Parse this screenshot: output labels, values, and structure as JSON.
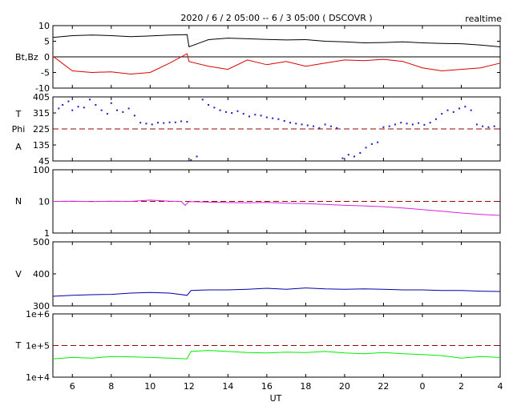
{
  "header": {
    "title": "2020 / 6 / 2  05:00 -- 6 / 3  05:00 ( DSCOVR )",
    "mode": "realtime"
  },
  "colors": {
    "bt": "#000000",
    "bz": "#dd0000",
    "phi": "#1a1acc",
    "ref_line": "#990000",
    "density": "#dd22dd",
    "speed": "#0000aa",
    "temperature": "#00ee00"
  },
  "chart_data": [
    {
      "type": "line",
      "panel": "magnetic-field",
      "ylabel": "Bt,Bz",
      "x_range": [
        5,
        28
      ],
      "ylim": [
        -10,
        10
      ],
      "yticks": [
        "10",
        "5",
        "0",
        "-5",
        "-10"
      ],
      "reference_line": 0,
      "x": [
        5.0,
        6.0,
        7.0,
        8.0,
        9.0,
        10.0,
        11.0,
        11.9,
        12.0,
        13.0,
        14.0,
        15.0,
        16.0,
        17.0,
        18.0,
        19.0,
        20.0,
        21.0,
        22.0,
        23.0,
        24.0,
        25.0,
        26.0,
        27.0,
        28.0
      ],
      "series": [
        {
          "name": "Bt",
          "values": [
            6.2,
            6.8,
            7.0,
            6.8,
            6.5,
            6.7,
            7.0,
            7.1,
            3.2,
            5.5,
            6.0,
            5.8,
            5.6,
            5.4,
            5.5,
            5.0,
            4.8,
            4.5,
            4.6,
            4.8,
            4.5,
            4.3,
            4.2,
            3.8,
            3.2
          ]
        },
        {
          "name": "Bz",
          "values": [
            0.2,
            -4.5,
            -5.0,
            -4.8,
            -5.5,
            -5.0,
            -2.0,
            1.0,
            -1.5,
            -3.0,
            -4.0,
            -1.0,
            -2.5,
            -1.5,
            -3.0,
            -2.0,
            -1.0,
            -1.2,
            -0.8,
            -1.5,
            -3.5,
            -4.5,
            -4.0,
            -3.5,
            -2.0
          ]
        }
      ]
    },
    {
      "type": "scatter",
      "panel": "phi-angle",
      "ylabel": [
        "T",
        "Phi",
        "A"
      ],
      "x_range": [
        5,
        28
      ],
      "ylim": [
        45,
        405
      ],
      "yticks": [
        "405",
        "315",
        "225",
        "135",
        "45"
      ],
      "reference_line": 225,
      "x": [
        5.3,
        5.5,
        5.8,
        6.0,
        6.3,
        6.6,
        6.9,
        7.2,
        7.5,
        7.8,
        8.0,
        8.3,
        8.6,
        8.9,
        9.2,
        9.5,
        9.8,
        10.1,
        10.4,
        10.7,
        11.0,
        11.3,
        11.6,
        11.9,
        12.1,
        12.4,
        12.7,
        13.0,
        13.3,
        13.6,
        13.9,
        14.2,
        14.5,
        14.8,
        15.1,
        15.4,
        15.7,
        16.0,
        16.3,
        16.6,
        16.9,
        17.2,
        17.5,
        17.8,
        18.1,
        18.4,
        18.7,
        19.0,
        19.3,
        19.6,
        19.9,
        20.2,
        20.5,
        20.8,
        21.1,
        21.4,
        21.7,
        22.0,
        22.3,
        22.6,
        22.9,
        23.2,
        23.5,
        23.8,
        24.1,
        24.4,
        24.7,
        25.0,
        25.3,
        25.6,
        25.9,
        26.2,
        26.5,
        26.8,
        27.1,
        27.4,
        27.7
      ],
      "values": [
        340,
        360,
        380,
        330,
        350,
        345,
        390,
        360,
        330,
        310,
        370,
        330,
        320,
        340,
        300,
        260,
        255,
        250,
        260,
        258,
        262,
        262,
        268,
        265,
        50,
        70,
        390,
        360,
        345,
        330,
        320,
        315,
        325,
        310,
        295,
        305,
        300,
        290,
        285,
        280,
        270,
        260,
        255,
        250,
        245,
        240,
        230,
        250,
        240,
        230,
        60,
        80,
        70,
        90,
        120,
        140,
        150,
        235,
        240,
        250,
        260,
        255,
        250,
        258,
        248,
        260,
        280,
        310,
        330,
        320,
        340,
        350,
        330,
        250,
        240,
        235,
        240
      ]
    },
    {
      "type": "line",
      "panel": "density",
      "ylabel": "N",
      "x_range": [
        5,
        28
      ],
      "yscale": "log",
      "ylim": [
        1,
        100
      ],
      "yticks": [
        "100",
        "10",
        "1"
      ],
      "reference_line": 10,
      "x": [
        5.0,
        6.0,
        7.0,
        8.0,
        9.0,
        10.0,
        11.0,
        11.6,
        11.8,
        12.0,
        13.0,
        14.0,
        15.0,
        16.0,
        17.0,
        18.0,
        19.0,
        20.0,
        21.0,
        22.0,
        23.0,
        24.0,
        25.0,
        26.0,
        27.0,
        28.0
      ],
      "values": [
        10.0,
        10.2,
        9.8,
        10.1,
        10.0,
        11.0,
        10.2,
        10.0,
        7.5,
        9.8,
        9.5,
        9.2,
        9.0,
        9.3,
        8.8,
        8.5,
        8.0,
        7.5,
        7.2,
        6.8,
        6.2,
        5.5,
        4.9,
        4.3,
        3.9,
        3.6
      ]
    },
    {
      "type": "line",
      "panel": "speed",
      "ylabel": "V",
      "x_range": [
        5,
        28
      ],
      "ylim": [
        300,
        500
      ],
      "yticks": [
        "500",
        "400",
        "300"
      ],
      "x": [
        5.0,
        6.0,
        7.0,
        8.0,
        9.0,
        10.0,
        11.0,
        11.9,
        12.1,
        13.0,
        14.0,
        15.0,
        16.0,
        17.0,
        18.0,
        19.0,
        20.0,
        21.0,
        22.0,
        23.0,
        24.0,
        25.0,
        26.0,
        27.0,
        28.0
      ],
      "values": [
        330,
        333,
        335,
        336,
        340,
        342,
        340,
        333,
        348,
        350,
        350,
        352,
        355,
        352,
        356,
        353,
        352,
        353,
        352,
        350,
        350,
        348,
        348,
        346,
        345
      ]
    },
    {
      "type": "line",
      "panel": "temperature",
      "ylabel": "T",
      "x_range": [
        5,
        28
      ],
      "xlabel": "UT",
      "xticks": [
        "6",
        "8",
        "10",
        "12",
        "14",
        "16",
        "18",
        "20",
        "22",
        "0",
        "2",
        "4"
      ],
      "yscale": "log",
      "ylim": [
        10000,
        1000000
      ],
      "yticks": [
        "1e+6",
        "1e+5",
        "1e+4"
      ],
      "reference_line": 100000,
      "x": [
        5.0,
        6.0,
        7.0,
        8.0,
        9.0,
        10.0,
        11.0,
        11.9,
        12.1,
        13.0,
        14.0,
        15.0,
        16.0,
        17.0,
        18.0,
        19.0,
        20.0,
        21.0,
        22.0,
        23.0,
        24.0,
        25.0,
        26.0,
        27.0,
        28.0
      ],
      "values": [
        38000,
        42000,
        40000,
        45000,
        44000,
        42000,
        40000,
        38000,
        65000,
        70000,
        65000,
        60000,
        58000,
        62000,
        60000,
        65000,
        58000,
        55000,
        60000,
        55000,
        52000,
        48000,
        40000,
        45000,
        42000
      ]
    }
  ]
}
